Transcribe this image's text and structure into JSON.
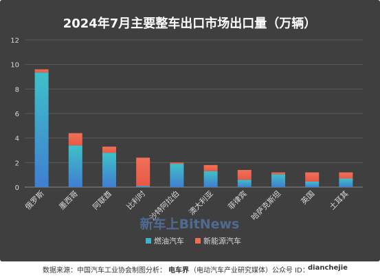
{
  "chart_data": {
    "type": "bar",
    "stacked": true,
    "title": "2024年7月主要整车出口市场出口量（万辆）",
    "categories": [
      "俄罗斯",
      "墨西哥",
      "阿联酋",
      "比利时",
      "沙特阿拉伯",
      "澳大利亚",
      "菲律宾",
      "哈萨克斯坦",
      "英国",
      "土耳其"
    ],
    "series": [
      {
        "name": "燃油汽车",
        "values": [
          9.35,
          3.4,
          2.8,
          0.1,
          1.9,
          1.3,
          0.6,
          1.05,
          0.45,
          0.7
        ],
        "color": "#3eb6c9"
      },
      {
        "name": "新能源汽车",
        "values": [
          0.25,
          1.0,
          0.5,
          2.3,
          0.1,
          0.5,
          0.8,
          0.15,
          0.75,
          0.5
        ],
        "color": "#ee6e55"
      }
    ],
    "ylim": [
      0,
      12
    ],
    "yticks": [
      0,
      2,
      4,
      6,
      8,
      10,
      12
    ],
    "grid": true,
    "legend_position": "bottom",
    "background": "#3f3f40",
    "watermark": "新车上BitNews"
  },
  "footer": {
    "source": "数据来源：中国汽车工业协会",
    "producer_label": "制图分析：",
    "producer": "电车界",
    "producer_note": "（电动汽车产业研究媒体）",
    "account_label": "公众号 ID：",
    "account_id": "dianchejie"
  }
}
